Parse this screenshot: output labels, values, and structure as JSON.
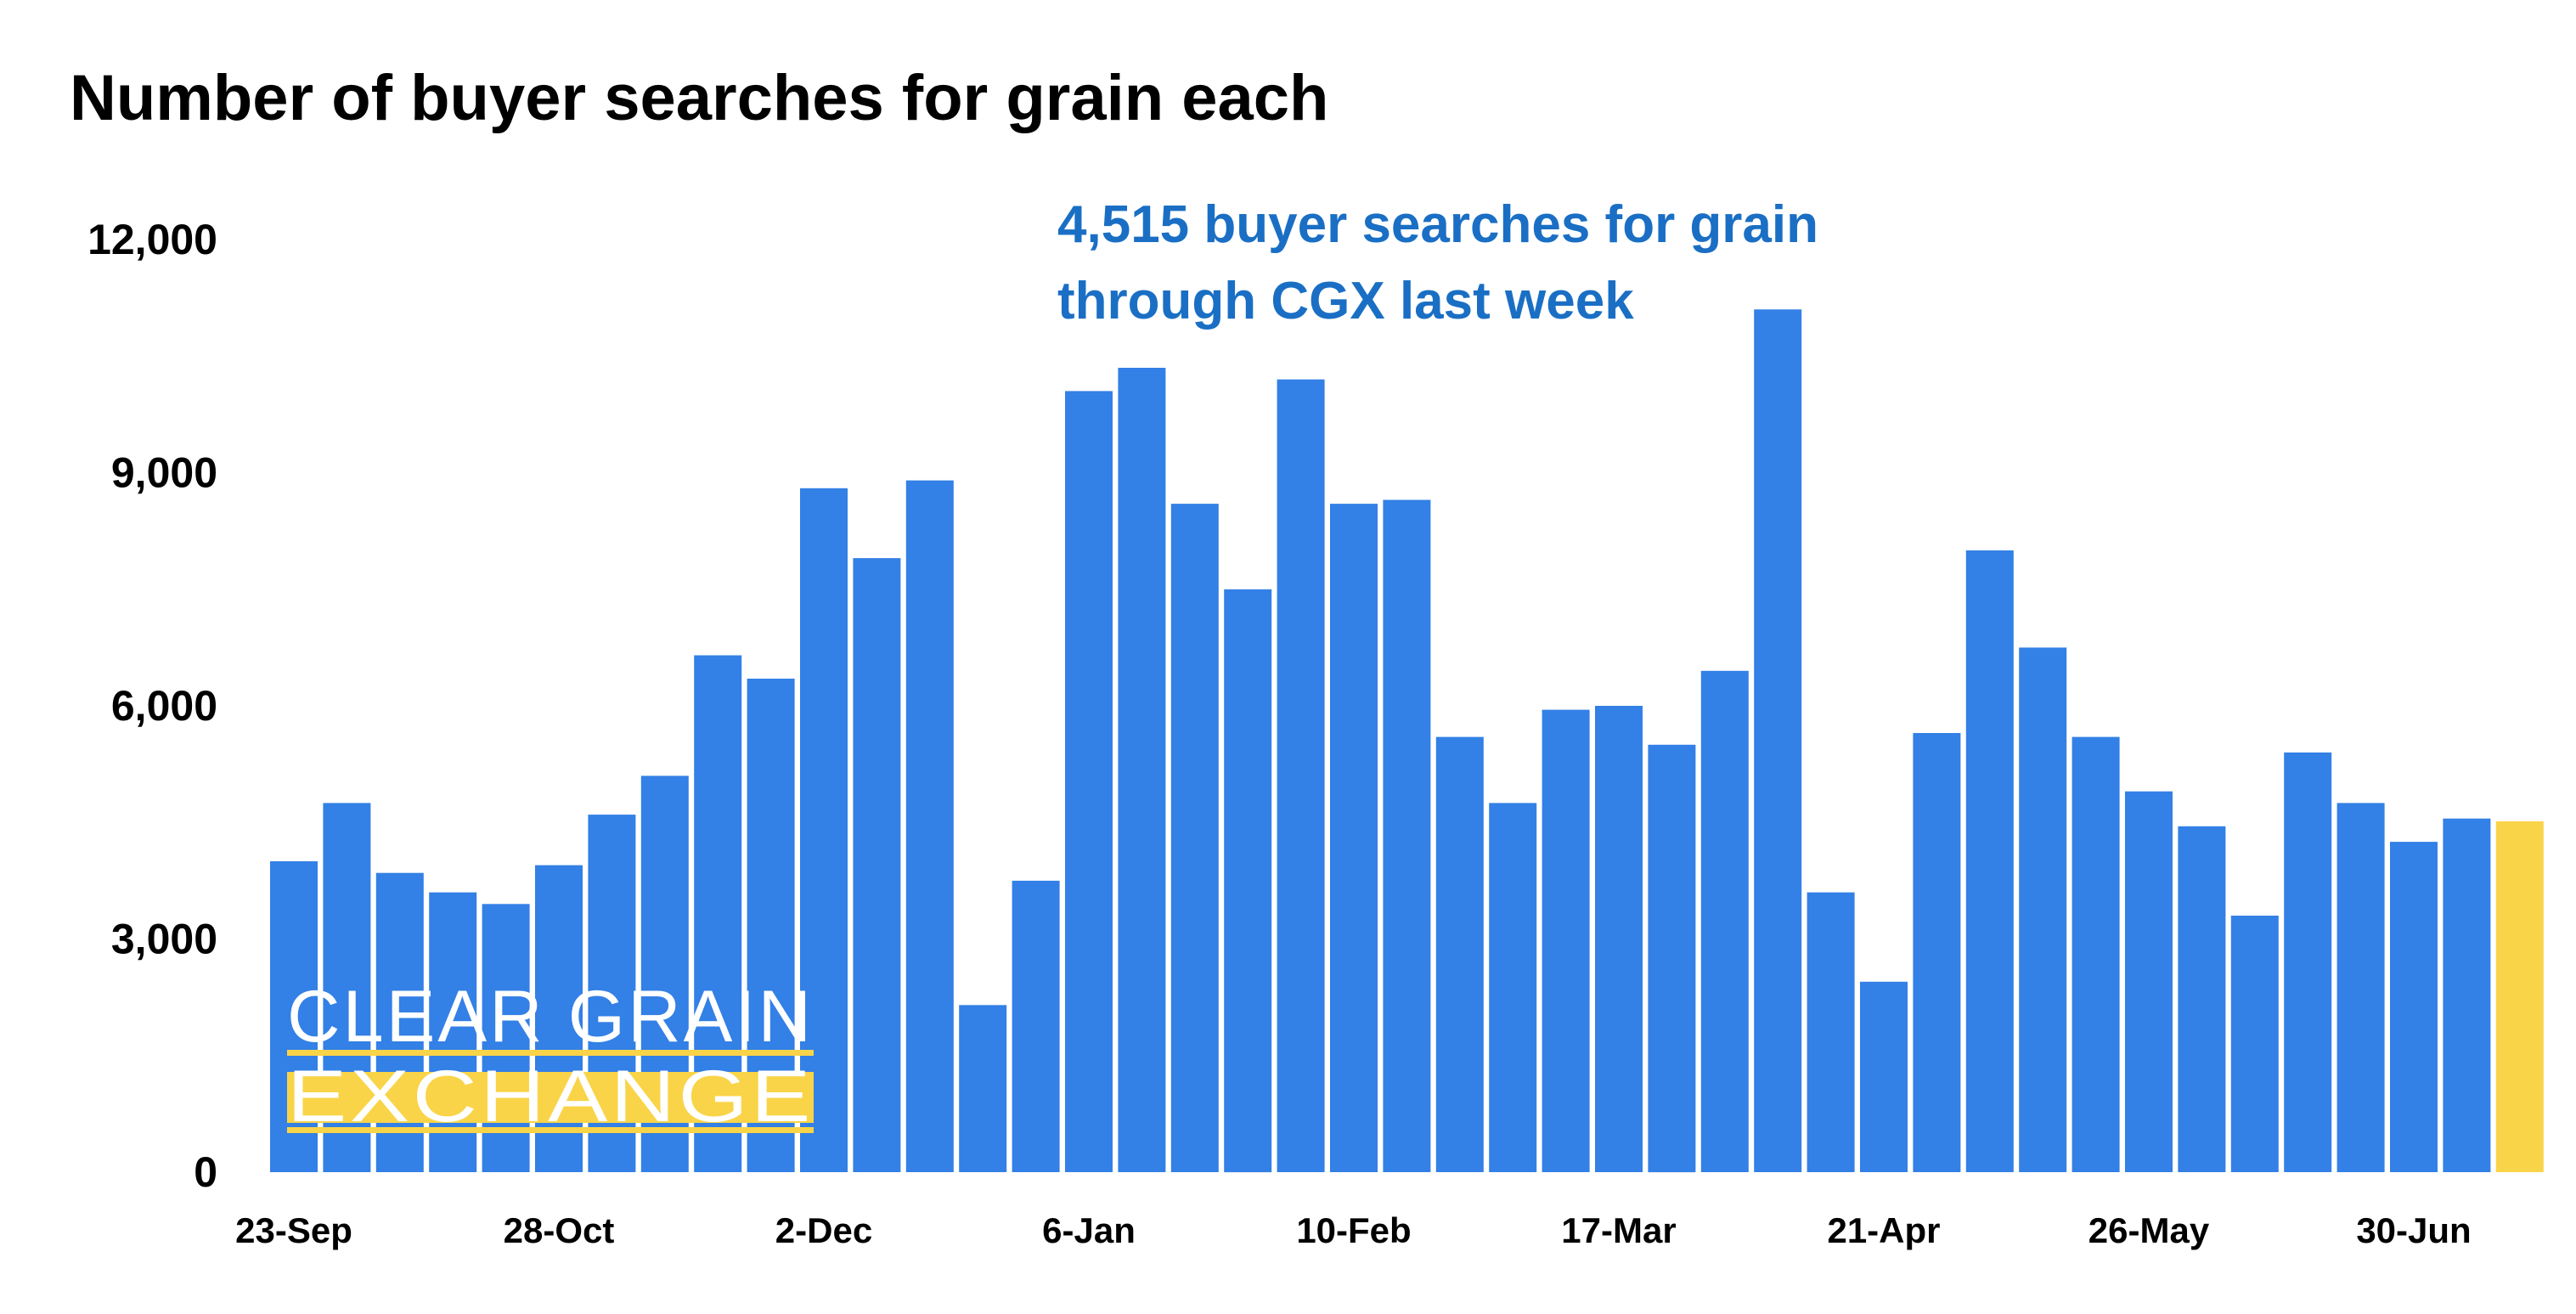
{
  "colors": {
    "bar": "#3380e6",
    "highlight": "#f9d448",
    "annotation": "#1a6fc4",
    "logo_text": "#ffffff",
    "logo_band": "#f9d448"
  },
  "logo": {
    "line1": "CLEAR GRAIN",
    "line2": "EXCHANGE"
  },
  "chart_data": {
    "type": "bar",
    "title": "Number of buyer searches for grain each",
    "annotation": [
      "4,515 buyer searches for grain",
      "through CGX last week"
    ],
    "ylim": [
      0,
      12000
    ],
    "yticks": [
      0,
      3000,
      6000,
      9000,
      12000
    ],
    "ytick_labels": [
      "0",
      "3,000",
      "6,000",
      "9,000",
      "12,000"
    ],
    "grid": false,
    "legend": "none",
    "xtick_labels": [
      {
        "index": 0,
        "label": "23-Sep"
      },
      {
        "index": 5,
        "label": "28-Oct"
      },
      {
        "index": 10,
        "label": "2-Dec"
      },
      {
        "index": 15,
        "label": "6-Jan"
      },
      {
        "index": 20,
        "label": "10-Feb"
      },
      {
        "index": 25,
        "label": "17-Mar"
      },
      {
        "index": 30,
        "label": "21-Apr"
      },
      {
        "index": 35,
        "label": "26-May"
      },
      {
        "index": 40,
        "label": "30-Jun"
      }
    ],
    "highlight_index": 42,
    "values": [
      4000,
      4750,
      3850,
      3600,
      3450,
      3950,
      4600,
      5100,
      6650,
      6350,
      8800,
      7900,
      8900,
      2150,
      3750,
      10050,
      10350,
      8600,
      7500,
      10200,
      8600,
      8650,
      5600,
      4750,
      5950,
      6000,
      5500,
      6450,
      11100,
      3600,
      2450,
      5650,
      8000,
      6750,
      5600,
      4900,
      4450,
      3300,
      5400,
      4750,
      4250,
      4550,
      4515
    ]
  }
}
